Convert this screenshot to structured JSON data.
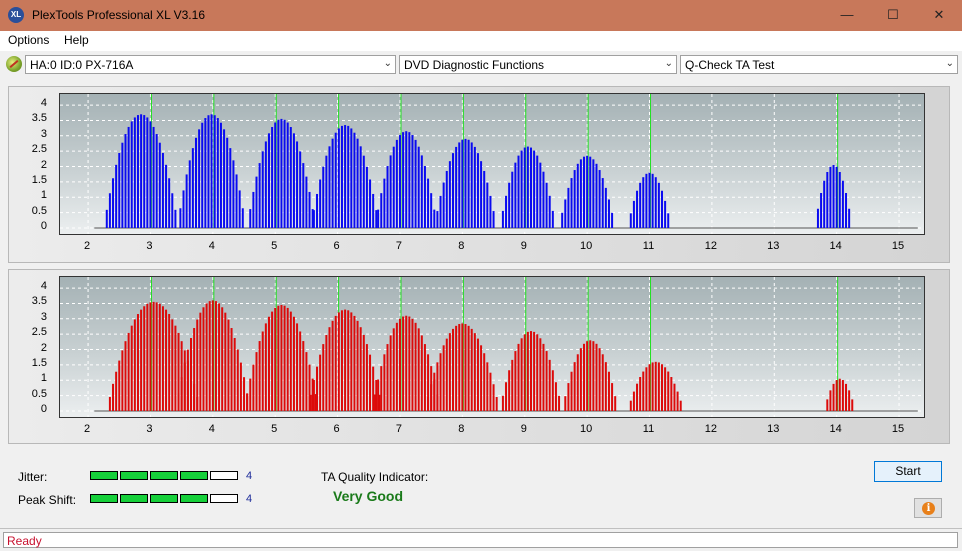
{
  "window": {
    "title": "PlexTools Professional XL V3.16",
    "icon_text": "XL",
    "minimize_glyph": "—",
    "maximize_glyph": "☐",
    "close_glyph": "✕"
  },
  "menu": {
    "items": [
      "Options",
      "Help"
    ]
  },
  "toolbar": {
    "drive": "HA:0 ID:0  PX-716A",
    "function": "DVD Diagnostic Functions",
    "test": "Q-Check TA Test",
    "arrow": "⌄"
  },
  "charts": {
    "y_ticks": [
      "0",
      "0.5",
      "1",
      "1.5",
      "2",
      "2.5",
      "3",
      "3.5",
      "4"
    ],
    "x_ticks": [
      "2",
      "3",
      "4",
      "5",
      "6",
      "7",
      "8",
      "9",
      "10",
      "11",
      "12",
      "13",
      "14",
      "15"
    ],
    "green_lines_x": [
      3,
      4,
      5,
      6,
      7,
      8,
      9,
      10,
      11,
      14
    ]
  },
  "chart_data": [
    {
      "type": "bar",
      "series": [
        {
          "color": "#0a0af0",
          "peaks": [
            {
              "center": 2.85,
              "height": 3.7,
              "halfwidth": 0.6
            },
            {
              "center": 3.98,
              "height": 3.7,
              "halfwidth": 0.55
            },
            {
              "center": 5.1,
              "height": 3.55,
              "halfwidth": 0.55
            },
            {
              "center": 6.12,
              "height": 3.35,
              "halfwidth": 0.55
            },
            {
              "center": 7.1,
              "height": 3.15,
              "halfwidth": 0.5
            },
            {
              "center": 8.05,
              "height": 2.9,
              "halfwidth": 0.5
            },
            {
              "center": 9.05,
              "height": 2.65,
              "halfwidth": 0.45
            },
            {
              "center": 10.0,
              "height": 2.35,
              "halfwidth": 0.45
            },
            {
              "center": 11.0,
              "height": 1.8,
              "halfwidth": 0.35
            },
            {
              "center": 13.95,
              "height": 2.05,
              "halfwidth": 0.3
            }
          ]
        }
      ],
      "xlim": [
        1.55,
        15.4
      ],
      "ylim": [
        0,
        4.1
      ]
    },
    {
      "type": "bar",
      "series": [
        {
          "color": "#dc0a0a",
          "peaks": [
            {
              "center": 3.05,
              "height": 3.55,
              "halfwidth": 0.75
            },
            {
              "center": 4.0,
              "height": 3.6,
              "halfwidth": 0.6
            },
            {
              "center": 5.1,
              "height": 3.45,
              "halfwidth": 0.6
            },
            {
              "center": 6.12,
              "height": 3.3,
              "halfwidth": 0.6
            },
            {
              "center": 7.1,
              "height": 3.1,
              "halfwidth": 0.55
            },
            {
              "center": 8.0,
              "height": 2.85,
              "halfwidth": 0.6
            },
            {
              "center": 9.1,
              "height": 2.6,
              "halfwidth": 0.5
            },
            {
              "center": 10.05,
              "height": 2.3,
              "halfwidth": 0.45
            },
            {
              "center": 11.1,
              "height": 1.6,
              "halfwidth": 0.45
            },
            {
              "center": 14.05,
              "height": 1.05,
              "halfwidth": 0.25
            }
          ]
        }
      ],
      "xlim": [
        1.55,
        15.4
      ],
      "ylim": [
        0,
        4.1
      ]
    }
  ],
  "results": {
    "jitter_label": "Jitter:",
    "jitter_value": "4",
    "jitter_level": 4,
    "peak_shift_label": "Peak Shift:",
    "peak_shift_value": "4",
    "peak_shift_level": 4,
    "segments_total": 5,
    "ta_label": "TA Quality Indicator:",
    "ta_value": "Very Good",
    "start_label": "Start",
    "info_glyph": "i"
  },
  "status": {
    "text": "Ready"
  },
  "colors": {
    "titlebar": "#c8785a",
    "good": "#1a7a1a",
    "meter_on": "#16d03a",
    "status_text": "#c8102e"
  }
}
